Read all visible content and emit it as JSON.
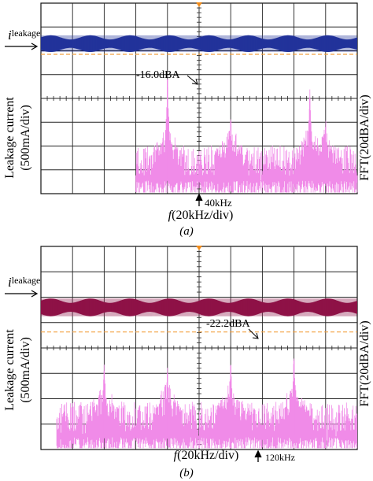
{
  "figure": {
    "panels": [
      {
        "caption": "(a)",
        "y_label_left": [
          "Leakage current",
          "(500mA/div)"
        ],
        "y_label_right": "FFT(20dBA/div)",
        "x_label": "f(20kHz/div)",
        "x_label_italic_part": "f",
        "x_label_rest": "(20kHz/div)",
        "trace_label_main": "i",
        "trace_label_sub": "leakage",
        "peak_annotation": "-16.0dBA",
        "marker_label": "40kHz",
        "trace_color": "#22339a",
        "fft_color": "#f08be8",
        "ref_line_color": "#f2a040"
      },
      {
        "caption": "(b)",
        "y_label_left": [
          "Leakage current",
          "(500mA/div)"
        ],
        "y_label_right": "FFT(20dBA/div)",
        "x_label": "f(20kHz/div)",
        "x_label_italic_part": "f",
        "x_label_rest": "(20kHz/div)",
        "trace_label_main": "i",
        "trace_label_sub": "leakage",
        "peak_annotation": "-22.2dBA",
        "marker_label": "120kHz",
        "trace_color": "#8e1247",
        "fft_color": "#f08be8",
        "ref_line_color": "#f2a040"
      }
    ]
  },
  "chart_data": [
    {
      "type": "line",
      "title": "",
      "xlabel": "f(20kHz/div)",
      "ylabel_left": "Leakage current (500mA/div)",
      "ylabel_right": "FFT(20dBA/div)",
      "x_unit": "kHz",
      "xlim": [
        0,
        200
      ],
      "grid": true,
      "grid_divisions": [
        10,
        8
      ],
      "series": [
        {
          "name": "i_leakage",
          "kind": "time-domain band",
          "level_div": 6.3,
          "ripple_div": 0.35
        },
        {
          "name": "FFT",
          "kind": "spectrum",
          "start_kHz": 60,
          "noise_floor_div": 1.4,
          "peaks": [
            {
              "x": 80,
              "height_div": 4.8
            },
            {
              "x": 120,
              "height_div": 2.9
            },
            {
              "x": 170,
              "height_div": 4.0
            },
            {
              "x": 180,
              "height_div": 2.8
            }
          ]
        }
      ],
      "annotations": [
        {
          "text": "-16.0dBA",
          "x": 80
        },
        {
          "text": "40kHz",
          "x": 80
        }
      ]
    },
    {
      "type": "line",
      "title": "",
      "xlabel": "f(20kHz/div)",
      "ylabel_left": "Leakage current (500mA/div)",
      "ylabel_right": "FFT(20dBA/div)",
      "x_unit": "kHz",
      "xlim": [
        0,
        200
      ],
      "grid": true,
      "grid_divisions": [
        10,
        8
      ],
      "series": [
        {
          "name": "i_leakage",
          "kind": "time-domain band",
          "level_div": 5.6,
          "ripple_div": 0.35
        },
        {
          "name": "FFT",
          "kind": "spectrum",
          "start_kHz": 10,
          "noise_floor_div": 1.3,
          "peaks": [
            {
              "x": 40,
              "height_div": 3.1
            },
            {
              "x": 80,
              "height_div": 3.0
            },
            {
              "x": 120,
              "height_div": 3.3
            },
            {
              "x": 160,
              "height_div": 3.5
            }
          ]
        }
      ],
      "annotations": [
        {
          "text": "-22.2dBA",
          "x": 160
        },
        {
          "text": "120kHz",
          "x": 160
        }
      ]
    }
  ]
}
